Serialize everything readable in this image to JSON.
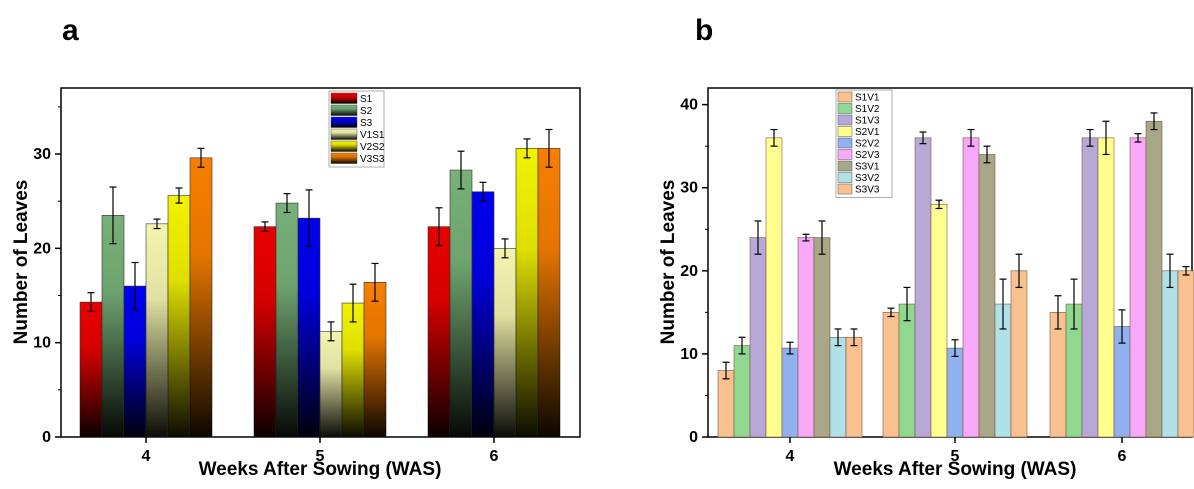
{
  "colors": {
    "a_S1": "#e80000",
    "a_S2": "#78b078",
    "a_S3": "#0000ee",
    "a_V1S1": "#f4f4b0",
    "a_V2S2": "#f2f200",
    "a_V3S3": "#f77f00",
    "b_S1V1": "#f9c190",
    "b_S1V2": "#90d890",
    "b_S1V3": "#b8a8d8",
    "b_S2V1": "#ffff90",
    "b_S2V2": "#90b0f0",
    "b_S2V3": "#f8a8f8",
    "b_S3V1": "#a8a888",
    "b_S3V2": "#b0e0e8",
    "b_S3V3": "#f9c190"
  },
  "chart_data": [
    {
      "type": "bar",
      "panel_label": "a",
      "xlabel": "Weeks After Sowing (WAS)",
      "ylabel": "Number of Leaves",
      "categories": [
        "4",
        "5",
        "6"
      ],
      "ylim": [
        0,
        37
      ],
      "yticks": [
        0,
        10,
        20,
        30
      ],
      "legend_position": "top-center",
      "series": [
        {
          "name": "S1",
          "values": [
            14.3,
            22.3,
            22.3
          ],
          "errors": [
            1.0,
            0.5,
            2.0
          ],
          "color_key": "a_S1"
        },
        {
          "name": "S2",
          "values": [
            23.5,
            24.8,
            28.3
          ],
          "errors": [
            3.0,
            1.0,
            2.0
          ],
          "color_key": "a_S2"
        },
        {
          "name": "S3",
          "values": [
            16.0,
            23.2,
            26.0
          ],
          "errors": [
            2.5,
            3.0,
            1.0
          ],
          "color_key": "a_S3"
        },
        {
          "name": "V1S1",
          "values": [
            22.6,
            11.2,
            20.0
          ],
          "errors": [
            0.5,
            1.0,
            1.0
          ],
          "color_key": "a_V1S1"
        },
        {
          "name": "V2S2",
          "values": [
            25.6,
            14.2,
            30.6
          ],
          "errors": [
            0.8,
            2.0,
            1.0
          ],
          "color_key": "a_V2S2"
        },
        {
          "name": "V3S3",
          "values": [
            29.6,
            16.4,
            30.6
          ],
          "errors": [
            1.0,
            2.0,
            2.0
          ],
          "color_key": "a_V3S3"
        }
      ]
    },
    {
      "type": "bar",
      "panel_label": "b",
      "xlabel": "Weeks After Sowing (WAS)",
      "ylabel": "Number of Leaves",
      "categories": [
        "4",
        "5",
        "6"
      ],
      "ylim": [
        0,
        42
      ],
      "yticks": [
        0,
        10,
        20,
        30,
        40
      ],
      "legend_position": "top-left",
      "series": [
        {
          "name": "S1V1",
          "values": [
            8,
            15,
            15
          ],
          "errors": [
            1.0,
            0.5,
            2.0
          ],
          "color_key": "b_S1V1"
        },
        {
          "name": "S1V2",
          "values": [
            11,
            16,
            16
          ],
          "errors": [
            1.0,
            2.0,
            3.0
          ],
          "color_key": "b_S1V2"
        },
        {
          "name": "S1V3",
          "values": [
            24,
            36,
            36
          ],
          "errors": [
            2.0,
            0.7,
            1.0
          ],
          "color_key": "b_S1V3"
        },
        {
          "name": "S2V1",
          "values": [
            36,
            28,
            36
          ],
          "errors": [
            1.0,
            0.5,
            2.0
          ],
          "color_key": "b_S2V1"
        },
        {
          "name": "S2V2",
          "values": [
            10.7,
            10.7,
            13.3
          ],
          "errors": [
            0.7,
            1.0,
            2.0
          ],
          "color_key": "b_S2V2"
        },
        {
          "name": "S2V3",
          "values": [
            24,
            36,
            36
          ],
          "errors": [
            0.4,
            1.0,
            0.5
          ],
          "color_key": "b_S2V3"
        },
        {
          "name": "S3V1",
          "values": [
            24,
            34,
            38
          ],
          "errors": [
            2.0,
            1.0,
            1.0
          ],
          "color_key": "b_S3V1"
        },
        {
          "name": "S3V2",
          "values": [
            12,
            16,
            20
          ],
          "errors": [
            1.0,
            3.0,
            2.0
          ],
          "color_key": "b_S3V2"
        },
        {
          "name": "S3V3",
          "values": [
            12,
            20,
            20
          ],
          "errors": [
            1.0,
            2.0,
            0.5
          ],
          "color_key": "b_S3V3"
        }
      ]
    }
  ]
}
